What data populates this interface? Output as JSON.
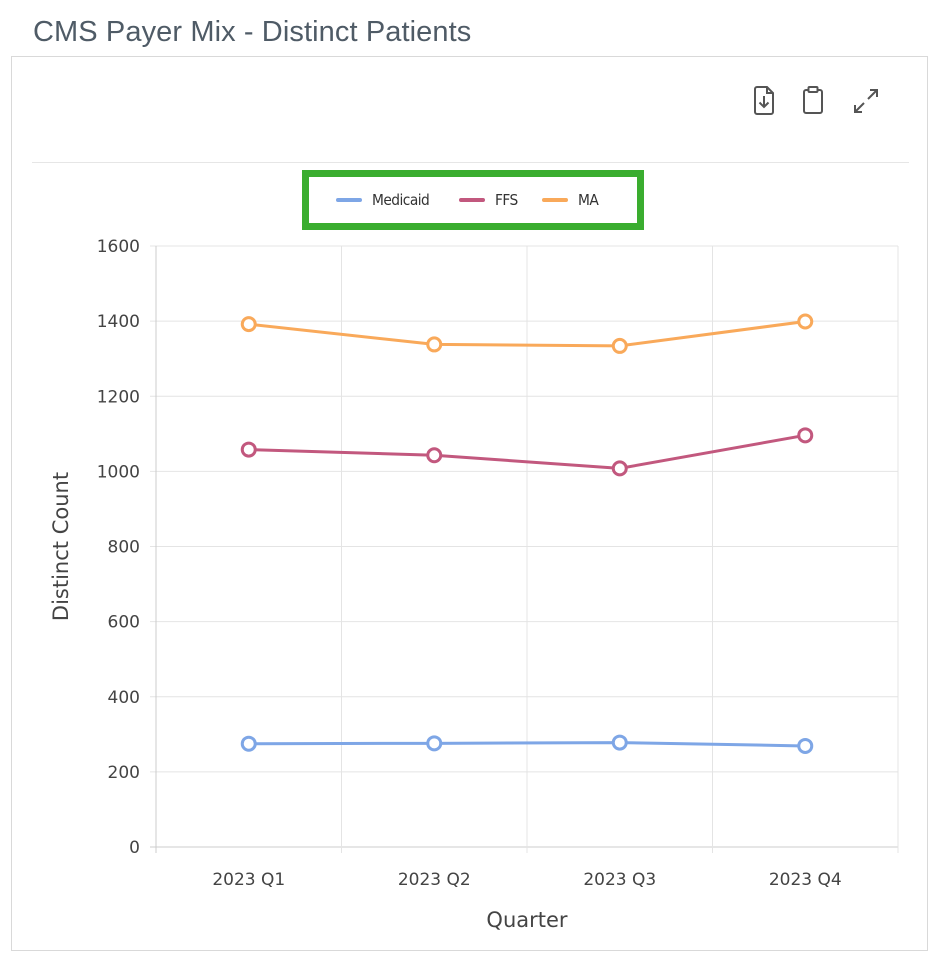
{
  "page": {
    "title": "CMS Payer Mix - Distinct Patients"
  },
  "toolbar": {
    "download_icon": "file-download-icon",
    "clipboard_icon": "clipboard-icon",
    "expand_icon": "expand-icon"
  },
  "chart_data": {
    "type": "line",
    "categories": [
      "2023 Q1",
      "2023 Q2",
      "2023 Q3",
      "2023 Q4"
    ],
    "series": [
      {
        "name": "Medicaid",
        "color": "#7ea6e6",
        "values": [
          275,
          276,
          278,
          269
        ]
      },
      {
        "name": "FFS",
        "color": "#c2587e",
        "values": [
          1058,
          1043,
          1008,
          1096
        ]
      },
      {
        "name": "MA",
        "color": "#f9a95a",
        "values": [
          1392,
          1338,
          1334,
          1399
        ]
      }
    ],
    "xlabel": "Quarter",
    "ylabel": "Distinct Count",
    "ylim": [
      0,
      1600
    ],
    "yticks": [
      0,
      200,
      400,
      600,
      800,
      1000,
      1200,
      1400,
      1600
    ],
    "grid": true,
    "legend_position": "top-center",
    "legend_highlight_color": "#3aad2f"
  }
}
